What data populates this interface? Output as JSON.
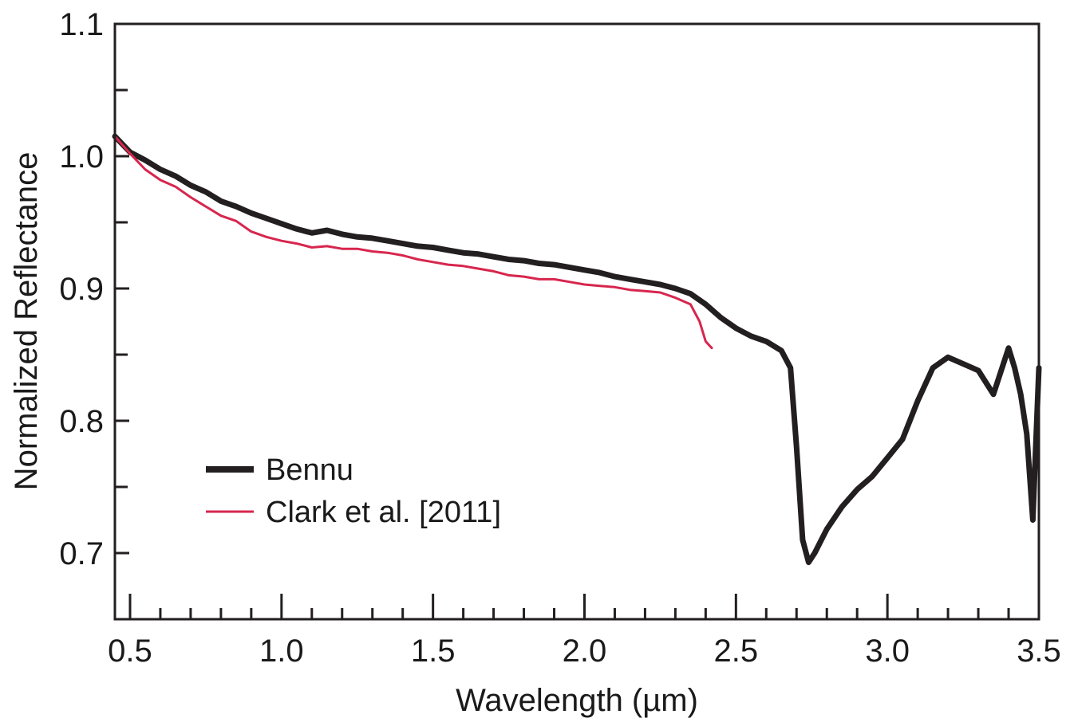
{
  "chart_data": {
    "type": "line",
    "xlabel": "Wavelength (µm)",
    "ylabel": "Normalized Reflectance",
    "xlim": [
      0.45,
      3.5
    ],
    "ylim": [
      0.65,
      1.1
    ],
    "x_ticks": [
      "0.5",
      "1.0",
      "1.5",
      "2.0",
      "2.5",
      "3.0",
      "3.5"
    ],
    "y_ticks": [
      "0.7",
      "0.8",
      "0.9",
      "1.0",
      "1.1"
    ],
    "legend_position": "lower-left",
    "grid": false,
    "series": [
      {
        "name": "Bennu",
        "color": "#231f20",
        "x": [
          0.45,
          0.5,
          0.55,
          0.6,
          0.65,
          0.7,
          0.75,
          0.8,
          0.85,
          0.9,
          0.95,
          1.0,
          1.05,
          1.1,
          1.15,
          1.2,
          1.25,
          1.3,
          1.35,
          1.4,
          1.45,
          1.5,
          1.55,
          1.6,
          1.65,
          1.7,
          1.75,
          1.8,
          1.85,
          1.9,
          1.95,
          2.0,
          2.05,
          2.1,
          2.15,
          2.2,
          2.25,
          2.3,
          2.35,
          2.4,
          2.45,
          2.5,
          2.55,
          2.6,
          2.65,
          2.68,
          2.7,
          2.72,
          2.74,
          2.76,
          2.8,
          2.85,
          2.9,
          2.95,
          3.0,
          3.05,
          3.1,
          3.15,
          3.2,
          3.25,
          3.3,
          3.35,
          3.4,
          3.42,
          3.44,
          3.46,
          3.48,
          3.5
        ],
        "y": [
          1.015,
          1.003,
          0.997,
          0.99,
          0.985,
          0.978,
          0.973,
          0.966,
          0.962,
          0.957,
          0.953,
          0.949,
          0.945,
          0.942,
          0.944,
          0.941,
          0.939,
          0.938,
          0.936,
          0.934,
          0.932,
          0.931,
          0.929,
          0.927,
          0.926,
          0.924,
          0.922,
          0.921,
          0.919,
          0.918,
          0.916,
          0.914,
          0.912,
          0.909,
          0.907,
          0.905,
          0.903,
          0.9,
          0.896,
          0.888,
          0.878,
          0.87,
          0.864,
          0.86,
          0.853,
          0.84,
          0.78,
          0.71,
          0.693,
          0.7,
          0.718,
          0.735,
          0.748,
          0.758,
          0.772,
          0.786,
          0.815,
          0.84,
          0.848,
          0.843,
          0.838,
          0.82,
          0.855,
          0.84,
          0.82,
          0.79,
          0.725,
          0.84
        ]
      },
      {
        "name": "Clark et al. [2011]",
        "color": "#d7264e",
        "x": [
          0.45,
          0.5,
          0.55,
          0.6,
          0.65,
          0.7,
          0.75,
          0.8,
          0.85,
          0.9,
          0.95,
          1.0,
          1.05,
          1.1,
          1.15,
          1.2,
          1.25,
          1.3,
          1.35,
          1.4,
          1.45,
          1.5,
          1.55,
          1.6,
          1.65,
          1.7,
          1.75,
          1.8,
          1.85,
          1.9,
          1.95,
          2.0,
          2.05,
          2.1,
          2.15,
          2.2,
          2.25,
          2.3,
          2.35,
          2.38,
          2.4,
          2.42
        ],
        "y": [
          1.015,
          1.002,
          0.99,
          0.982,
          0.977,
          0.969,
          0.962,
          0.955,
          0.951,
          0.943,
          0.939,
          0.936,
          0.934,
          0.931,
          0.932,
          0.93,
          0.93,
          0.928,
          0.927,
          0.925,
          0.922,
          0.92,
          0.918,
          0.917,
          0.915,
          0.913,
          0.91,
          0.909,
          0.907,
          0.907,
          0.905,
          0.903,
          0.902,
          0.901,
          0.899,
          0.898,
          0.897,
          0.893,
          0.888,
          0.875,
          0.86,
          0.855
        ]
      }
    ]
  }
}
